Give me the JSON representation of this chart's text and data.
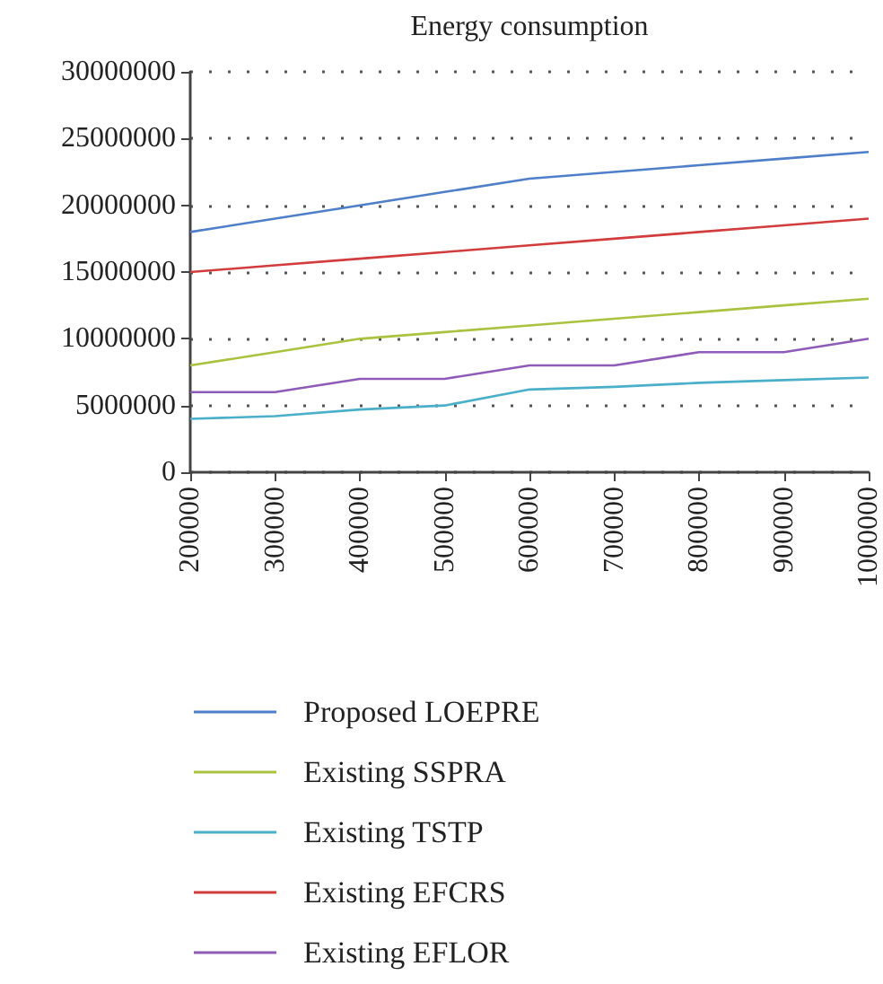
{
  "chart_data": {
    "type": "line",
    "title": "Energy consumption",
    "categories": [
      "200000",
      "300000",
      "400000",
      "500000",
      "600000",
      "700000",
      "800000",
      "900000",
      "1000000"
    ],
    "series": [
      {
        "name": "Proposed LOEPRE",
        "color": "#4f7fc9",
        "values": [
          18000000,
          19000000,
          20000000,
          21000000,
          22000000,
          22500000,
          23000000,
          23500000,
          24000000
        ]
      },
      {
        "name": "Existing SSPRA",
        "color": "#a9c23f",
        "values": [
          8000000,
          9000000,
          10000000,
          10500000,
          11000000,
          11500000,
          12000000,
          12500000,
          13000000
        ]
      },
      {
        "name": "Existing TSTP",
        "color": "#4aafc9",
        "values": [
          4000000,
          4200000,
          4700000,
          5000000,
          6200000,
          6400000,
          6700000,
          6900000,
          7100000
        ]
      },
      {
        "name": "Existing EFCRS",
        "color": "#d23c3c",
        "values": [
          15000000,
          15500000,
          16000000,
          16500000,
          17000000,
          17500000,
          18000000,
          18500000,
          19000000
        ]
      },
      {
        "name": "Existing EFLOR",
        "color": "#8e5bb8",
        "values": [
          6000000,
          6000000,
          7000000,
          7000000,
          8000000,
          8000000,
          9000000,
          9000000,
          10000000
        ]
      }
    ],
    "ylim": [
      0,
      30000000
    ],
    "yticks": [
      0,
      5000000,
      10000000,
      15000000,
      20000000,
      25000000,
      30000000
    ],
    "grid": "y",
    "legend": "bottom",
    "marker": "none",
    "line_style": "solid"
  }
}
